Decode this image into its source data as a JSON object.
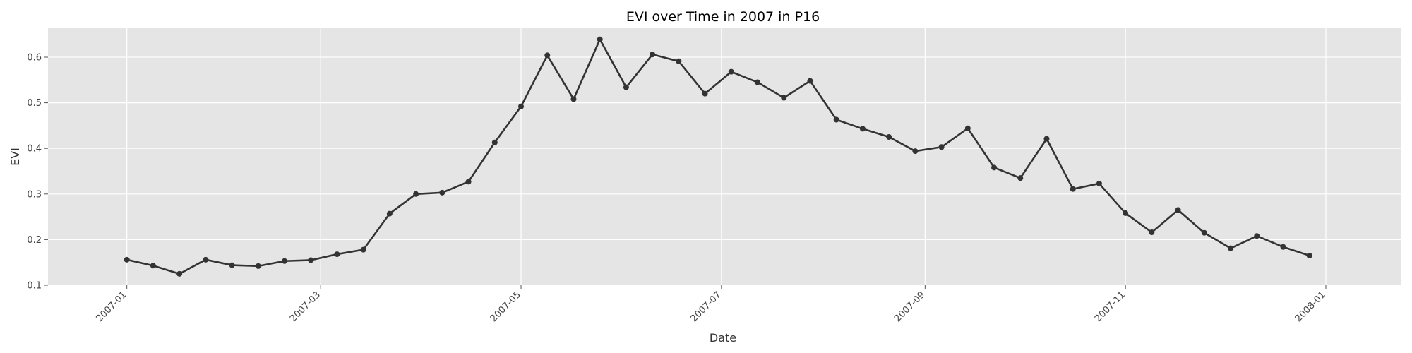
{
  "chart_data": {
    "type": "line",
    "title": "EVI over Time in 2007 in P16",
    "xlabel": "Date",
    "ylabel": "EVI",
    "xlim": [
      "2006-12-08",
      "2008-01-24"
    ],
    "ylim": [
      0.1,
      0.665
    ],
    "grid": true,
    "x_ticks": [
      "2007-01",
      "2007-03",
      "2007-05",
      "2007-07",
      "2007-09",
      "2007-11",
      "2008-01"
    ],
    "y_ticks": [
      "0.1",
      "0.2",
      "0.3",
      "0.4",
      "0.5",
      "0.6"
    ],
    "colors": {
      "line": "#333333",
      "plot_bg": "#e5e5e5",
      "grid": "#ffffff"
    },
    "series": [
      {
        "x": [
          "2007-01-01",
          "2007-01-09",
          "2007-01-17",
          "2007-01-25",
          "2007-02-02",
          "2007-02-10",
          "2007-02-18",
          "2007-02-26",
          "2007-03-06",
          "2007-03-14",
          "2007-03-22",
          "2007-03-30",
          "2007-04-07",
          "2007-04-15",
          "2007-04-23",
          "2007-05-01",
          "2007-05-09",
          "2007-05-17",
          "2007-05-25",
          "2007-06-02",
          "2007-06-10",
          "2007-06-18",
          "2007-06-26",
          "2007-07-04",
          "2007-07-12",
          "2007-07-20",
          "2007-07-28",
          "2007-08-05",
          "2007-08-13",
          "2007-08-21",
          "2007-08-29",
          "2007-09-06",
          "2007-09-14",
          "2007-09-22",
          "2007-09-30",
          "2007-10-08",
          "2007-10-16",
          "2007-10-24",
          "2007-11-01",
          "2007-11-09",
          "2007-11-17",
          "2007-11-25",
          "2007-12-03",
          "2007-12-11",
          "2007-12-19",
          "2007-12-27"
        ],
        "values": [
          0.156,
          0.143,
          0.125,
          0.156,
          0.144,
          0.142,
          0.153,
          0.155,
          0.168,
          0.178,
          0.257,
          0.3,
          0.303,
          0.327,
          0.413,
          0.492,
          0.604,
          0.508,
          0.639,
          0.534,
          0.606,
          0.591,
          0.52,
          0.568,
          0.545,
          0.511,
          0.548,
          0.463,
          0.443,
          0.425,
          0.394,
          0.403,
          0.444,
          0.358,
          0.335,
          0.421,
          0.311,
          0.323,
          0.258,
          0.216,
          0.265,
          0.215,
          0.181,
          0.208,
          0.184,
          0.165
        ]
      }
    ]
  }
}
